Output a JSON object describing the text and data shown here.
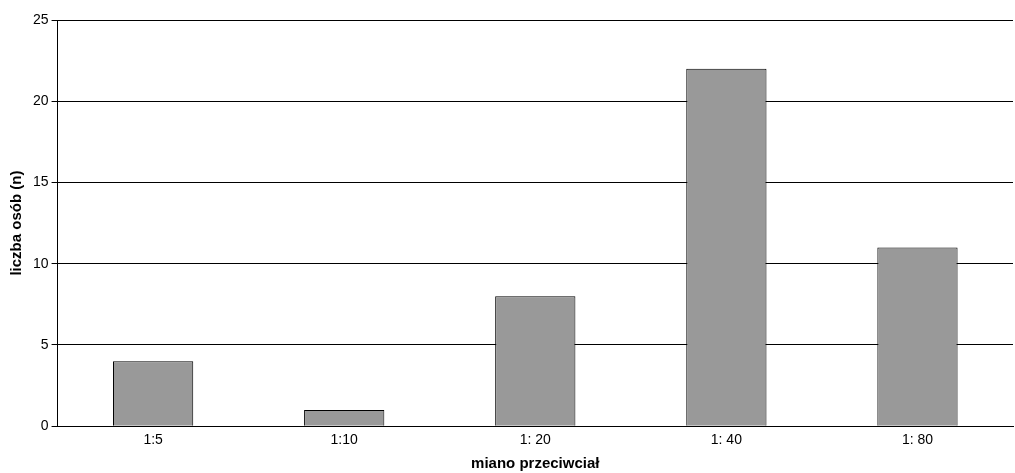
{
  "chart_data": {
    "type": "bar",
    "xlabel": "miano przeciwciał",
    "ylabel": "liczba osób (n)",
    "categories": [
      "1:5",
      "1:10",
      "1: 20",
      "1: 40",
      "1: 80"
    ],
    "values": [
      4,
      1,
      8,
      22,
      11
    ],
    "color": "#999999",
    "ylim": [
      0,
      25
    ],
    "yticks": [
      0,
      5,
      10,
      15,
      20,
      25
    ],
    "grid": "y"
  }
}
